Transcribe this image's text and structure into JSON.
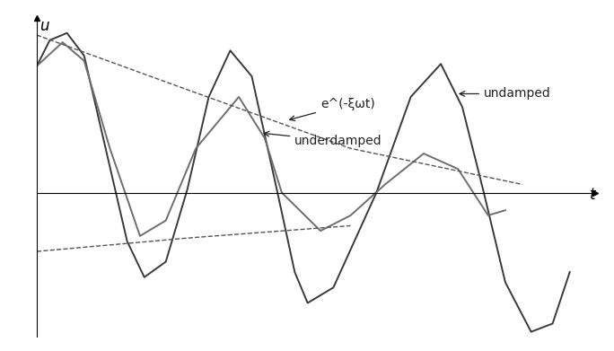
{
  "chart_data": {
    "type": "line",
    "x_label": "t",
    "y_label": "u",
    "xlim": [
      0,
      13
    ],
    "ylim": [
      -14,
      17
    ],
    "xticks": [],
    "yticks": [],
    "tick_labels": false,
    "grid": false,
    "series": [
      {
        "name": "undamped",
        "color": "#3a3a3a",
        "line_style": "solid",
        "x": [
          0,
          0.3,
          0.7,
          1.1,
          1.6,
          2.1,
          2.5,
          3.0,
          3.5,
          4.0,
          4.5,
          5.0,
          5.6,
          6.0,
          6.3,
          6.9,
          7.9,
          8.7,
          9.4,
          9.9,
          10.4,
          10.9,
          11.5,
          12.0,
          12.4
        ],
        "values": [
          12.3,
          14.8,
          15.5,
          13.3,
          4.3,
          -4.7,
          -8.2,
          -6.7,
          0.3,
          9.3,
          13.8,
          11.3,
          0,
          -7.7,
          -10.7,
          -9.2,
          0,
          9.3,
          12.5,
          8.3,
          0,
          -8.7,
          -13.5,
          -12.7,
          -7.7
        ]
      },
      {
        "name": "underdamped",
        "color": "#6e6e6e",
        "line_style": "solid",
        "x": [
          0,
          0.6,
          1.1,
          1.7,
          2.4,
          3.0,
          3.7,
          4.7,
          5.3,
          5.7,
          6.6,
          7.3,
          8.1,
          9.0,
          9.8,
          10.5,
          10.9
        ],
        "values": [
          12.3,
          14.6,
          12.8,
          4.3,
          -4.2,
          -2.7,
          4.3,
          9.3,
          5.3,
          0,
          -3.7,
          -2.2,
          0.8,
          3.8,
          2.3,
          -2.2,
          -1.7
        ]
      },
      {
        "name": "e^(-ξωt)",
        "color": "#555555",
        "line_style": "dashed",
        "x": [
          0,
          3.3,
          7.3,
          11.3
        ],
        "values": [
          15.3,
          10.3,
          4.3,
          0.8
        ]
      },
      {
        "color": "#555555",
        "line_style": "dashed",
        "x": [
          0,
          3.5,
          7.3
        ],
        "values": [
          -5.7,
          -4.4,
          -3.2
        ]
      }
    ]
  }
}
